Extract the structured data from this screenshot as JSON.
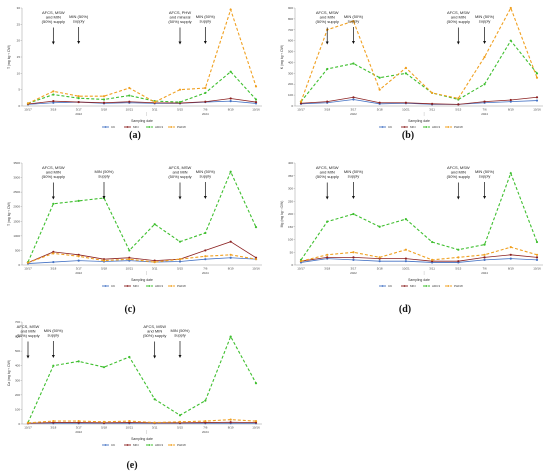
{
  "series_styles": [
    {
      "key": "CK",
      "color": "#4472c4",
      "dash": ""
    },
    {
      "key": "MIN",
      "color": "#8b2020",
      "dash": ""
    },
    {
      "key": "ADC3",
      "color": "#3fbf2f",
      "dash": "3,2"
    },
    {
      "key": "PHFW",
      "color": "#f0a020",
      "dash": "3,2"
    }
  ],
  "chart_data": [
    {
      "type": "line",
      "panel_label": "(a)",
      "ylabel": "T (mg kg⁻¹ DW)",
      "xlabel": "Sampling date",
      "categories": [
        "10/17",
        "3/18",
        "3/17",
        "5/18",
        "10/21",
        "3/11",
        "5/15",
        "7/6",
        "8/19",
        "10/16"
      ],
      "years": [
        "2022",
        "2024"
      ],
      "ylim": [
        0,
        30
      ],
      "yticks": [
        0,
        5,
        10,
        15,
        20,
        25,
        30
      ],
      "series": [
        {
          "name": "CK",
          "values": [
            0.5,
            1.0,
            1.2,
            0.8,
            1.0,
            0.8,
            0.8,
            1.2,
            1.5,
            0.8
          ]
        },
        {
          "name": "MIN",
          "values": [
            0.6,
            1.5,
            1.2,
            1.0,
            1.3,
            1.0,
            0.9,
            1.3,
            2.3,
            1.2
          ]
        },
        {
          "name": "ADC3",
          "values": [
            0.8,
            3.5,
            2.4,
            2.0,
            3.2,
            1.5,
            1.2,
            4.0,
            10.5,
            2.0
          ]
        },
        {
          "name": "PHFW",
          "values": [
            0.8,
            4.5,
            3.0,
            3.0,
            5.5,
            1.2,
            5.0,
            5.5,
            29.5,
            6.0
          ]
        }
      ],
      "annotations": [
        {
          "text": "AFCS, MSW and MIN (50%) supply",
          "at": 1
        },
        {
          "text": "MIN (50%) supply",
          "at": 2
        },
        {
          "text": "AFCS, PHW and mineral (50%) supply",
          "at": 6
        },
        {
          "text": "MIN (50%) supply",
          "at": 7
        }
      ]
    },
    {
      "type": "line",
      "panel_label": "(b)",
      "ylabel": "K (mg kg⁻¹ DW)",
      "xlabel": "Sampling date",
      "categories": [
        "10/17",
        "3/18",
        "3/17",
        "5/18",
        "10/21",
        "3/11",
        "5/15",
        "7/6",
        "8/19",
        "10/16"
      ],
      "years": [
        "2022",
        "2024"
      ],
      "ylim": [
        0,
        900
      ],
      "yticks": [
        0,
        100,
        200,
        300,
        400,
        500,
        600,
        700,
        800,
        900
      ],
      "series": [
        {
          "name": "CK",
          "values": [
            20,
            30,
            60,
            20,
            25,
            15,
            15,
            30,
            40,
            50
          ]
        },
        {
          "name": "MIN",
          "values": [
            25,
            40,
            80,
            30,
            30,
            20,
            15,
            40,
            55,
            80
          ]
        },
        {
          "name": "ADC3",
          "values": [
            40,
            340,
            390,
            260,
            300,
            120,
            60,
            200,
            600,
            300
          ]
        },
        {
          "name": "PHFW",
          "values": [
            40,
            700,
            780,
            150,
            350,
            120,
            70,
            450,
            900,
            260
          ]
        }
      ],
      "annotations": [
        {
          "text": "AFCS, MSW and MIN (50%) supply",
          "at": 1
        },
        {
          "text": "MIN (50%) supply",
          "at": 2
        },
        {
          "text": "AFCS, MSW and MIN (50%) supply",
          "at": 6
        },
        {
          "text": "MIN (50%) supply",
          "at": 7
        }
      ]
    },
    {
      "type": "line",
      "panel_label": "(c)",
      "ylabel": "T (mg kg⁻¹ DW)",
      "xlabel": "Sampling date",
      "categories": [
        "10/17",
        "3/18",
        "3/17",
        "5/18",
        "10/21",
        "3/11",
        "5/15",
        "7/6",
        "8/19",
        "10/16"
      ],
      "years": [
        "2022",
        "2024"
      ],
      "ylim": [
        0,
        3500
      ],
      "yticks": [
        0,
        500,
        1000,
        1500,
        2000,
        2500,
        3000,
        3500
      ],
      "series": [
        {
          "name": "CK",
          "values": [
            50,
            100,
            150,
            120,
            150,
            100,
            120,
            200,
            250,
            200
          ]
        },
        {
          "name": "MIN",
          "values": [
            80,
            450,
            350,
            200,
            250,
            150,
            200,
            500,
            800,
            250
          ]
        },
        {
          "name": "ADC3",
          "values": [
            100,
            2100,
            2200,
            2300,
            500,
            1400,
            800,
            1100,
            3200,
            1300
          ]
        },
        {
          "name": "PHFW",
          "values": [
            80,
            400,
            300,
            150,
            200,
            100,
            200,
            300,
            350,
            200
          ]
        }
      ],
      "annotations": [
        {
          "text": "AFCS, MSW and MIN (50%) supply",
          "at": 1
        },
        {
          "text": "MIN (50%) supply",
          "at": 3
        },
        {
          "text": "AFCS, MSW and MIN (50%) supply",
          "at": 6
        },
        {
          "text": "MIN (50%) supply",
          "at": 7
        }
      ]
    },
    {
      "type": "line",
      "panel_label": "(d)",
      "ylabel": "Mg (mg kg⁻¹ DW)",
      "xlabel": "Sampling date",
      "categories": [
        "10/17",
        "3/18",
        "3/17",
        "5/18",
        "10/21",
        "3/11",
        "5/15",
        "7/6",
        "8/19",
        "10/16"
      ],
      "years": [
        "2022",
        "2024"
      ],
      "ylim": [
        0,
        400
      ],
      "yticks": [
        0,
        50,
        100,
        150,
        200,
        250,
        300,
        350,
        400
      ],
      "series": [
        {
          "name": "CK",
          "values": [
            10,
            25,
            20,
            15,
            15,
            10,
            10,
            20,
            25,
            20
          ]
        },
        {
          "name": "MIN",
          "values": [
            15,
            30,
            30,
            25,
            25,
            15,
            15,
            30,
            40,
            30
          ]
        },
        {
          "name": "ADC3",
          "values": [
            20,
            170,
            200,
            150,
            180,
            90,
            60,
            80,
            360,
            90
          ]
        },
        {
          "name": "PHFW",
          "values": [
            15,
            40,
            50,
            30,
            60,
            20,
            30,
            40,
            70,
            40
          ]
        }
      ],
      "annotations": [
        {
          "text": "AFCS, MSW and MIN (50%) supply",
          "at": 1
        },
        {
          "text": "MIN (50%) supply",
          "at": 2
        },
        {
          "text": "AFCS, MSW and MIN (50%) supply",
          "at": 6
        },
        {
          "text": "MIN (50%) supply",
          "at": 7
        }
      ]
    },
    {
      "type": "line",
      "panel_label": "(e)",
      "ylabel": "Ca (mg kg⁻¹ DW)",
      "xlabel": "Sampling date",
      "categories": [
        "10/17",
        "3/18",
        "3/17",
        "5/18",
        "10/21",
        "3/11",
        "5/15",
        "7/6",
        "8/19",
        "10/16"
      ],
      "years": [
        "2022",
        "2024"
      ],
      "ylim": [
        0,
        700
      ],
      "yticks": [
        0,
        100,
        200,
        300,
        400,
        500,
        600,
        700
      ],
      "series": [
        {
          "name": "CK",
          "values": [
            5,
            5,
            5,
            5,
            5,
            5,
            5,
            5,
            5,
            5
          ]
        },
        {
          "name": "MIN",
          "values": [
            5,
            10,
            10,
            8,
            10,
            8,
            8,
            10,
            12,
            10
          ]
        },
        {
          "name": "ADC3",
          "values": [
            10,
            400,
            430,
            390,
            460,
            170,
            60,
            160,
            600,
            280
          ]
        },
        {
          "name": "PHFW",
          "values": [
            8,
            20,
            20,
            15,
            20,
            10,
            15,
            20,
            30,
            20
          ]
        }
      ],
      "annotations": [
        {
          "text": "AFCS, MSW and MIN (50%) supply",
          "at": 0
        },
        {
          "text": "MIN (50%) supply",
          "at": 1
        },
        {
          "text": "AFCS, MSW and MIN (50%) supply",
          "at": 5
        },
        {
          "text": "MIN (50%) supply",
          "at": 6
        }
      ]
    }
  ]
}
